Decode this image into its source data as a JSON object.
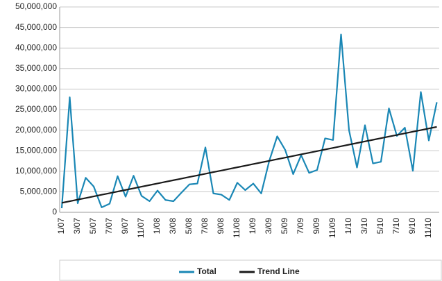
{
  "chart_data": {
    "type": "line",
    "categories": [
      "1/07",
      null,
      "3/07",
      null,
      "5/07",
      null,
      "7/07",
      null,
      "9/07",
      null,
      "11/07",
      null,
      "1/08",
      null,
      "3/08",
      null,
      "5/08",
      null,
      "7/08",
      null,
      "9/08",
      null,
      "11/08",
      null,
      "1/09",
      null,
      "3/09",
      null,
      "5/09",
      null,
      "7/09",
      null,
      "9/09",
      null,
      "11/09",
      null,
      "1/10",
      null,
      "3/10",
      null,
      "5/10",
      null,
      "7/10",
      null,
      "9/10",
      null,
      "11/10",
      null
    ],
    "series": [
      {
        "name": "Total",
        "color": "#1a87b5",
        "values": [
          1000000,
          28000000,
          2200000,
          8400000,
          6300000,
          1200000,
          2100000,
          8800000,
          3800000,
          8900000,
          4000000,
          2700000,
          5300000,
          3000000,
          2700000,
          4800000,
          6800000,
          7000000,
          15800000,
          4600000,
          4300000,
          3000000,
          7200000,
          5400000,
          7000000,
          4600000,
          12500000,
          18500000,
          15200000,
          9300000,
          13900000,
          9600000,
          10300000,
          18000000,
          17600000,
          43300000,
          20000000,
          10900000,
          21200000,
          11900000,
          12300000,
          25300000,
          18600000,
          20600000,
          10100000,
          29300000,
          17500000,
          26800000
        ]
      },
      {
        "name": "Trend Line",
        "color": "#1a1a1a",
        "values": [
          2300000,
          2690000,
          3090000,
          3480000,
          3870000,
          4270000,
          4660000,
          5060000,
          5450000,
          5840000,
          6240000,
          6630000,
          7020000,
          7420000,
          7810000,
          8200000,
          8600000,
          8990000,
          9380000,
          9780000,
          10170000,
          10570000,
          10960000,
          11350000,
          11750000,
          12140000,
          12530000,
          12930000,
          13320000,
          13720000,
          14110000,
          14500000,
          14900000,
          15290000,
          15680000,
          16080000,
          16470000,
          16870000,
          17260000,
          17650000,
          18050000,
          18440000,
          18830000,
          19230000,
          19620000,
          20010000,
          20410000,
          20800000
        ]
      }
    ],
    "ylim": [
      0,
      50000000
    ],
    "yticks": [
      0,
      {
        "value": 5000000,
        "label": "5,000,000"
      },
      {
        "value": 10000000,
        "label": "10,000,000"
      },
      {
        "value": 15000000,
        "label": "15,000,000"
      },
      {
        "value": 20000000,
        "label": "20,000,000"
      },
      {
        "value": 25000000,
        "label": "25,000,000"
      },
      {
        "value": 30000000,
        "label": "30,000,000"
      },
      {
        "value": 35000000,
        "label": "35,000,000"
      },
      {
        "value": 40000000,
        "label": "40,000,000"
      },
      {
        "value": 45000000,
        "label": "45,000,000"
      },
      {
        "value": 50000000,
        "label": "50,000,000"
      }
    ],
    "grid": true,
    "legend": "bottom"
  }
}
